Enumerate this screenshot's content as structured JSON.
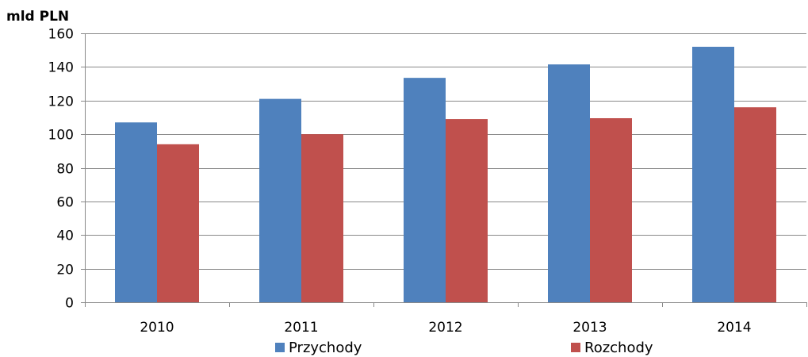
{
  "chart_data": {
    "type": "bar",
    "title": "",
    "unit_label": "mld PLN",
    "xlabel": "",
    "ylabel": "",
    "categories": [
      "2010",
      "2011",
      "2012",
      "2013",
      "2014"
    ],
    "series": [
      {
        "name": "Przychody",
        "color": "#4F81BD",
        "values": [
          107,
          121,
          133.5,
          141.5,
          152
        ]
      },
      {
        "name": "Rozchody",
        "color": "#C0504D",
        "values": [
          94,
          100,
          109,
          109.5,
          116
        ]
      }
    ],
    "ylim": [
      0,
      160
    ],
    "yticks": [
      "0",
      "20",
      "40",
      "60",
      "80",
      "100",
      "120",
      "140",
      "160"
    ],
    "grid": true,
    "legend_position": "bottom"
  }
}
